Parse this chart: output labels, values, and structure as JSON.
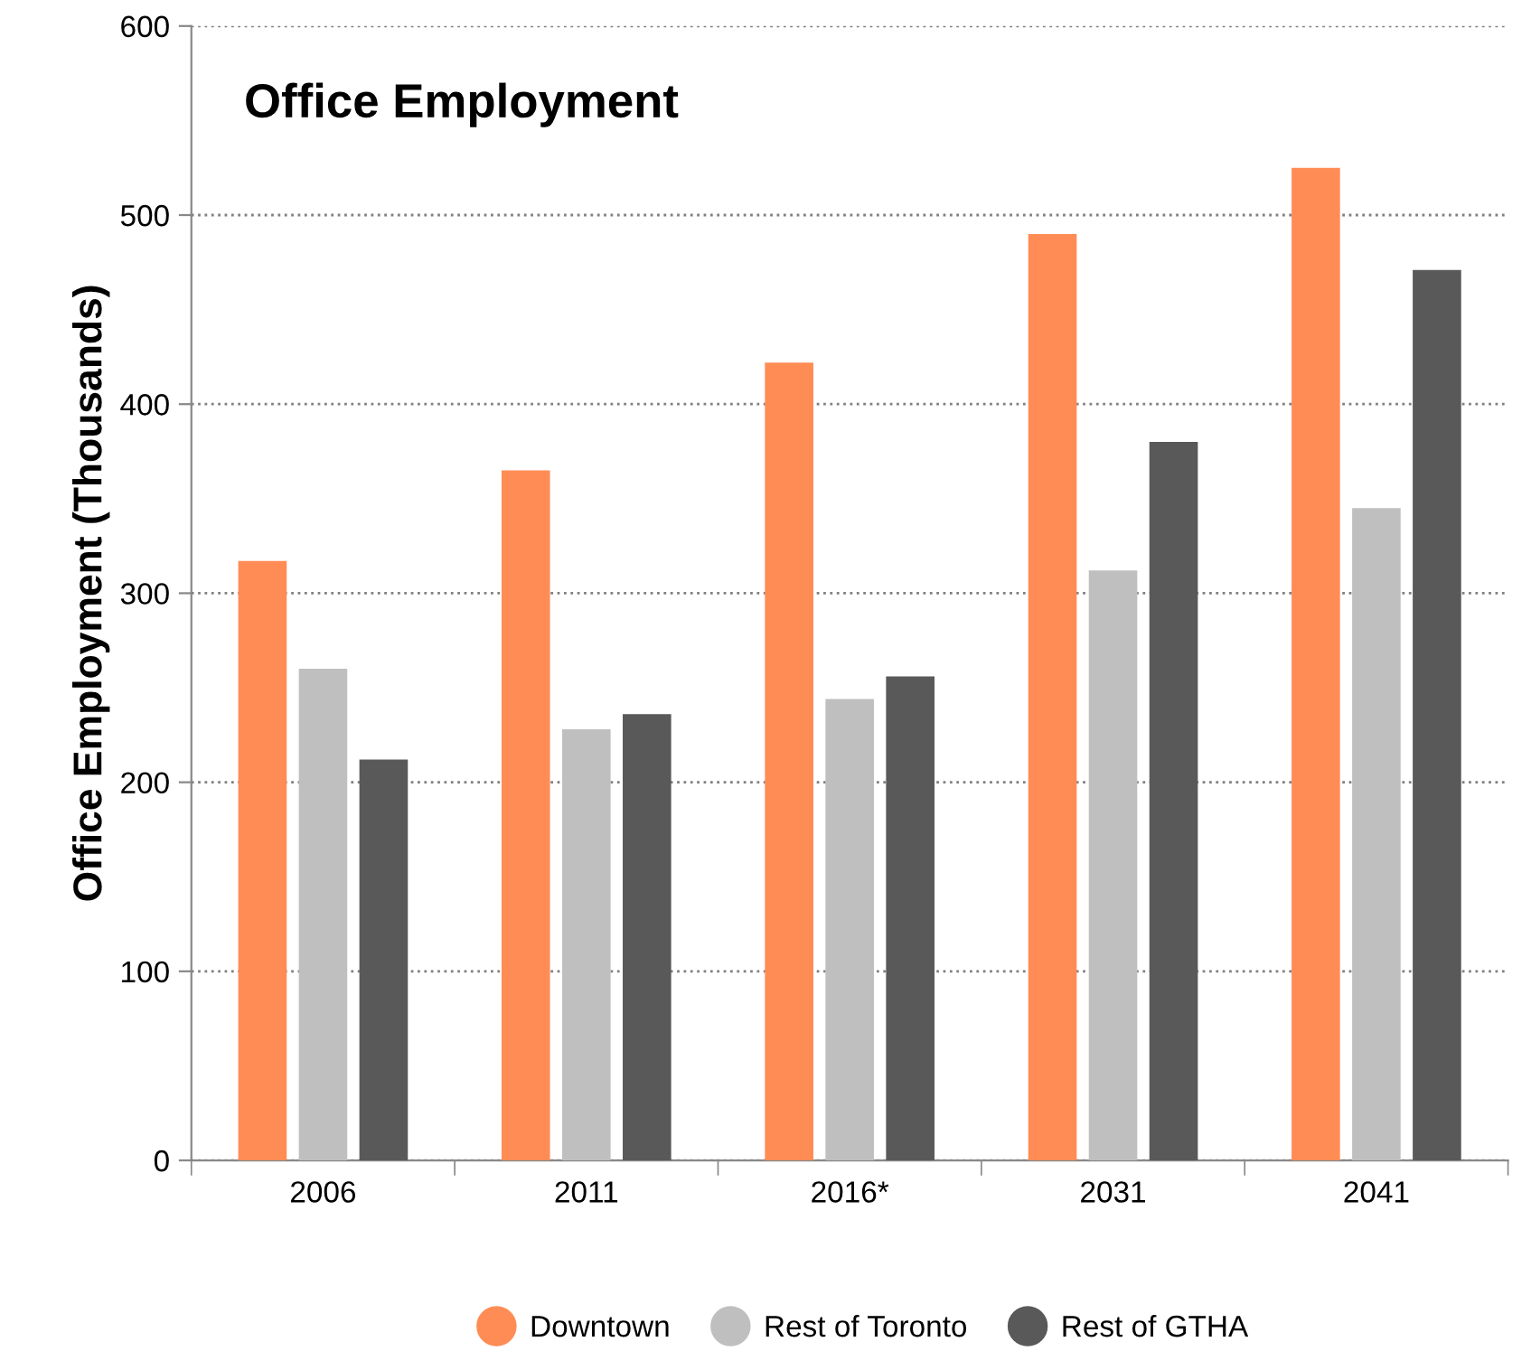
{
  "chart_data": {
    "type": "bar",
    "title": "Office Employment",
    "ylabel": "Office Employment (Thousands)",
    "categories": [
      "2006",
      "2011",
      "2016*",
      "2031",
      "2041"
    ],
    "series": [
      {
        "name": "Downtown",
        "color": "#ff8c55",
        "values": [
          317,
          365,
          422,
          490,
          525
        ]
      },
      {
        "name": "Rest of Toronto",
        "color": "#bfbfbf",
        "values": [
          260,
          228,
          244,
          312,
          345
        ]
      },
      {
        "name": "Rest of GTHA",
        "color": "#595959",
        "values": [
          212,
          236,
          256,
          380,
          471
        ]
      }
    ],
    "ylim": [
      0,
      600
    ],
    "yticks": [
      0,
      100,
      200,
      300,
      400,
      500,
      600
    ],
    "grid": "y",
    "legend": "bottom"
  }
}
